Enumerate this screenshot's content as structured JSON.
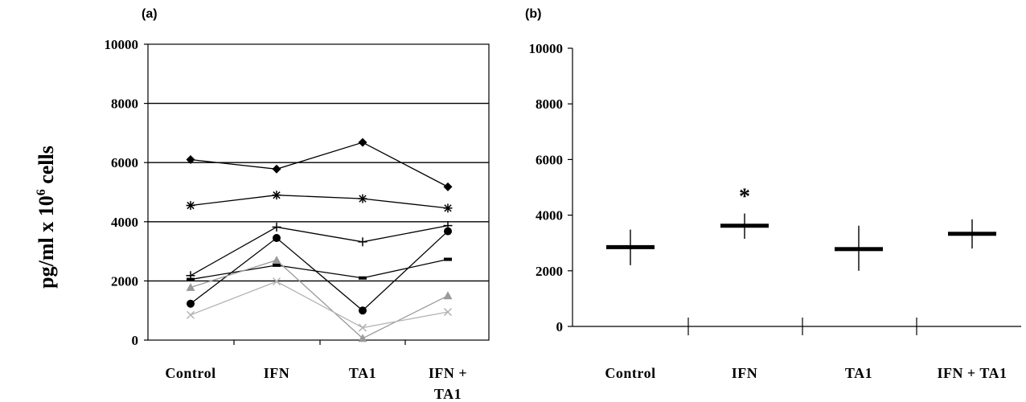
{
  "figure": {
    "ylabel_main": "pg/ml x 10",
    "ylabel_sup": "6",
    "ylabel_tail": " cells"
  },
  "chart_data": [
    {
      "panel": "(a)",
      "type": "line",
      "categories": [
        "Control",
        "IFN",
        "TA1",
        "IFN + TA1"
      ],
      "category_lines": [
        [
          "Control"
        ],
        [
          "IFN"
        ],
        [
          "TA1"
        ],
        [
          "IFN +",
          "TA1"
        ]
      ],
      "ylim": [
        0,
        10000
      ],
      "yticks": [
        0,
        2000,
        4000,
        6000,
        8000,
        10000
      ],
      "grid": true,
      "series": [
        {
          "marker": "diamond",
          "color": "#000000",
          "values": [
            6100,
            5780,
            6680,
            5180
          ]
        },
        {
          "marker": "asterisk",
          "color": "#000000",
          "values": [
            4550,
            4900,
            4780,
            4460
          ]
        },
        {
          "marker": "plus",
          "color": "#000000",
          "values": [
            2180,
            3820,
            3320,
            3870
          ]
        },
        {
          "marker": "circle",
          "color": "#000000",
          "values": [
            1230,
            3450,
            1000,
            3680
          ]
        },
        {
          "marker": "dash",
          "color": "#000000",
          "values": [
            2050,
            2530,
            2100,
            2730
          ]
        },
        {
          "marker": "triangle",
          "color": "#9a9a9a",
          "values": [
            1780,
            2700,
            60,
            1500
          ]
        },
        {
          "marker": "x",
          "color": "#b4b4b4",
          "values": [
            850,
            1980,
            420,
            950
          ]
        }
      ]
    },
    {
      "panel": "(b)",
      "type": "scatter",
      "categories": [
        "Control",
        "IFN",
        "TA1",
        "IFN + TA1"
      ],
      "ylim": [
        0,
        10000
      ],
      "yticks": [
        0,
        2000,
        4000,
        6000,
        8000,
        10000
      ],
      "grid": false,
      "points": [
        {
          "mean": 2850,
          "low": 2200,
          "high": 3480
        },
        {
          "mean": 3620,
          "low": 3150,
          "high": 4060,
          "annotation": "*"
        },
        {
          "mean": 2780,
          "low": 2000,
          "high": 3620
        },
        {
          "mean": 3330,
          "low": 2800,
          "high": 3850
        }
      ]
    }
  ]
}
